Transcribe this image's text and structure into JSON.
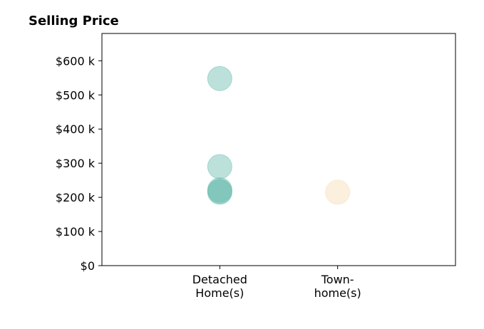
{
  "chart_data": {
    "type": "scatter",
    "title": "Selling Price",
    "xlabel": "",
    "ylabel": "",
    "categories": [
      [
        "Detached",
        "Home(s)"
      ],
      [
        "Town-",
        "home(s)"
      ]
    ],
    "xlim": [
      -1,
      2
    ],
    "ylim": [
      0,
      680000
    ],
    "yticks": [
      0,
      100000,
      200000,
      300000,
      400000,
      500000,
      600000
    ],
    "ytick_labels": [
      "$0",
      "$100 k",
      "$200 k",
      "$300 k",
      "$400 k",
      "$500 k",
      "$600 k"
    ],
    "grid": false,
    "legend": "none",
    "series": [
      {
        "category": 0,
        "color": "#6bbdb0",
        "values": [
          548000,
          290000,
          222000,
          218000,
          215000
        ]
      },
      {
        "category": 1,
        "color": "#f3deb4",
        "values": [
          215000
        ]
      }
    ]
  }
}
